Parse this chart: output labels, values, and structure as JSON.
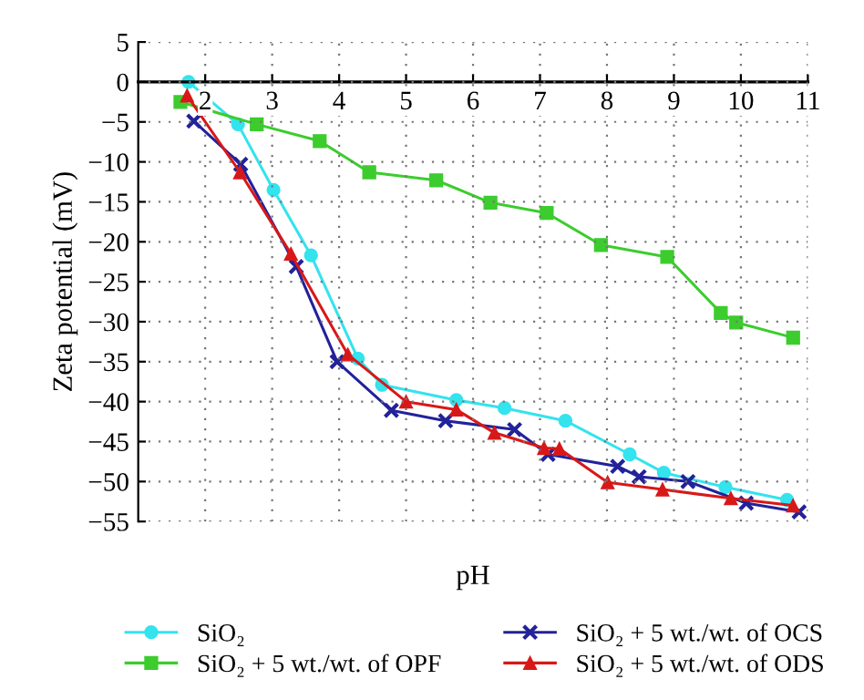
{
  "chart_data": {
    "type": "line",
    "xlabel": "pH",
    "ylabel": "Zeta potential (mV)",
    "xlim": [
      1,
      11
    ],
    "xticks": [
      2,
      3,
      4,
      5,
      6,
      7,
      8,
      9,
      10,
      11
    ],
    "ylim": [
      -55,
      5
    ],
    "yticks": [
      5,
      0,
      -5,
      -10,
      -15,
      -20,
      -25,
      -30,
      -35,
      -40,
      -45,
      -50,
      -55
    ],
    "grid": true,
    "legend": "bottom",
    "line_style": "solid",
    "series": [
      {
        "name": "SiO₂",
        "color": "#33e3ee",
        "marker": "circle",
        "x": [
          1.75,
          2.49,
          3.02,
          3.58,
          4.28,
          4.64,
          5.75,
          6.47,
          7.38,
          8.34,
          8.85,
          9.77,
          10.69
        ],
        "values": [
          0,
          -5.3,
          -13.5,
          -21.7,
          -34.6,
          -37.9,
          -39.8,
          -40.8,
          -42.4,
          -46.6,
          -48.9,
          -50.7,
          -52.3
        ]
      },
      {
        "name": "SiO₂ + 5 wt./wt. of OPF",
        "color": "#3ccc2e",
        "marker": "square",
        "x": [
          1.63,
          2.77,
          3.71,
          4.45,
          5.45,
          6.26,
          7.1,
          7.91,
          8.9,
          9.7,
          9.93,
          10.78
        ],
        "values": [
          -2.5,
          -5.3,
          -7.4,
          -11.3,
          -12.3,
          -15.1,
          -16.4,
          -20.4,
          -21.9,
          -28.9,
          -30.1,
          -32.0
        ]
      },
      {
        "name": "SiO₂ + 5 wt./wt. of OCS",
        "color": "#22229a",
        "marker": "cross",
        "x": [
          1.83,
          2.53,
          3.36,
          3.97,
          4.78,
          5.59,
          6.62,
          7.12,
          8.16,
          8.48,
          9.21,
          10.08,
          10.87
        ],
        "values": [
          -4.9,
          -10.3,
          -23.1,
          -35.0,
          -41.1,
          -42.4,
          -43.5,
          -46.6,
          -48.1,
          -49.4,
          -50.0,
          -52.7,
          -53.8
        ]
      },
      {
        "name": "SiO₂ + 5 wt./wt. of ODS",
        "color": "#d81818",
        "marker": "triangle",
        "x": [
          1.73,
          2.52,
          3.28,
          4.13,
          5.0,
          5.75,
          6.32,
          7.06,
          7.29,
          8.01,
          8.83,
          9.85,
          10.78
        ],
        "values": [
          -1.7,
          -11.3,
          -21.5,
          -34.1,
          -40.0,
          -41.0,
          -43.9,
          -45.8,
          -45.9,
          -50.1,
          -51.0,
          -52.1,
          -53.0
        ]
      }
    ]
  }
}
